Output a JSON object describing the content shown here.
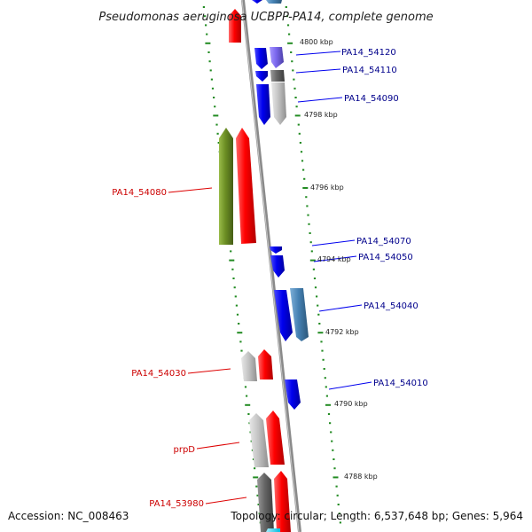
{
  "title": "Pseudomonas aeruginosa UCBPP-PA14, complete genome",
  "footer": {
    "accession": "Accession: NC_008463",
    "topology": "Topology: circular; Length: 6,537,648 bp; Genes: 5,964"
  },
  "kbp_ticks": [
    "4800 kbp",
    "4798 kbp",
    "4796 kbp",
    "4794 kbp",
    "4792 kbp",
    "4790 kbp",
    "4788 kbp"
  ],
  "labels_right": [
    "PA14_54120",
    "PA14_54110",
    "PA14_54090",
    "PA14_54070",
    "PA14_54050",
    "PA14_54040",
    "PA14_54010"
  ],
  "labels_left": [
    "PA14_54080",
    "PA14_54030",
    "prpD",
    "PA14_53980"
  ],
  "colors": {
    "forward": "#ff0000",
    "reverse": "#0000ee",
    "olive": "#6b8e23",
    "steel": "#4682b4",
    "violet": "#7b68ee",
    "gray": "#bdbdbd",
    "dark": "#666666",
    "backbone": "#888888",
    "tick": "#228b22",
    "label_right": "#00008b",
    "label_left": "#cc0000"
  }
}
